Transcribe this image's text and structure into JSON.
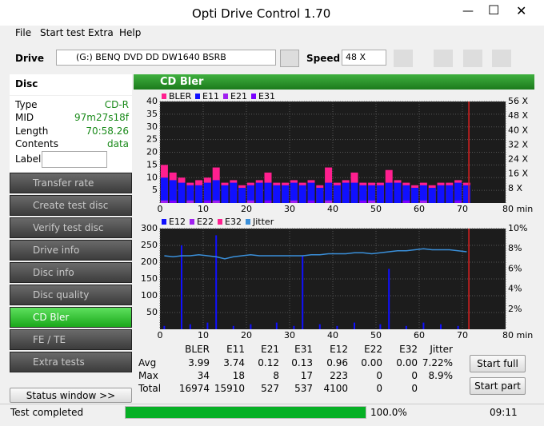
{
  "window": {
    "title": "Opti Drive Control 1.70"
  },
  "menu": [
    "File",
    "Start test",
    "Extra",
    "Help"
  ],
  "toolbar": {
    "drive_label": "Drive",
    "drive": "(G:)  BENQ DVD DD DW1640 BSRB",
    "speed_label": "Speed",
    "speed": "48 X"
  },
  "disc": {
    "title": "Disc",
    "fields": [
      [
        "Type",
        "CD-R"
      ],
      [
        "MID",
        "97m27s18f"
      ],
      [
        "Length",
        "70:58.26"
      ],
      [
        "Contents",
        "data"
      ]
    ],
    "label": "Label"
  },
  "nav": {
    "items": [
      "Transfer rate",
      "Create test disc",
      "Verify test disc",
      "Drive info",
      "Disc info",
      "Disc quality",
      "CD Bler",
      "FE / TE",
      "Extra tests"
    ],
    "selected": 6
  },
  "status_window": "Status window >>",
  "panel_title": "CD Bler",
  "charts": [
    {
      "type": "bar",
      "xlim": [
        0,
        80
      ],
      "xticks": [
        0,
        10,
        20,
        30,
        40,
        50,
        60,
        70,
        {
          "value": 80,
          "label": "80 min"
        }
      ],
      "ylim": [
        0,
        40
      ],
      "yticks": [
        5,
        10,
        15,
        20,
        25,
        30,
        35,
        40
      ],
      "y2lim": [
        0,
        56
      ],
      "y2ticks": [
        {
          "value": 8,
          "label": "8 X"
        },
        {
          "value": 16,
          "label": "16 X"
        },
        {
          "value": 24,
          "label": "24 X"
        },
        {
          "value": 32,
          "label": "32 X"
        },
        {
          "value": 40,
          "label": "40 X"
        },
        {
          "value": 48,
          "label": "48 X"
        },
        {
          "value": 56,
          "label": "56 X"
        }
      ],
      "grid": true,
      "marker": 71.5,
      "x": [
        1,
        3,
        5,
        7,
        9,
        11,
        13,
        15,
        17,
        19,
        21,
        23,
        25,
        27,
        29,
        31,
        33,
        35,
        37,
        39,
        41,
        43,
        45,
        47,
        49,
        51,
        53,
        55,
        57,
        59,
        61,
        63,
        65,
        67,
        69,
        71
      ],
      "series": [
        {
          "name": "BLER",
          "color": "#ff1f8f",
          "values": [
            15,
            12,
            10,
            8,
            9,
            10,
            14,
            8,
            9,
            7,
            8,
            9,
            12,
            8,
            8,
            9,
            8,
            9,
            7,
            14,
            8,
            9,
            12,
            8,
            8,
            8,
            13,
            9,
            8,
            7,
            8,
            7,
            8,
            8,
            9,
            8
          ]
        },
        {
          "name": "E11",
          "color": "#1010ff",
          "values": [
            10,
            9,
            8,
            7,
            7,
            8,
            9,
            7,
            8,
            6,
            7,
            8,
            8,
            7,
            7,
            8,
            7,
            8,
            6,
            8,
            7,
            8,
            8,
            7,
            7,
            7,
            8,
            8,
            7,
            6,
            7,
            6,
            7,
            7,
            8,
            7
          ]
        },
        {
          "name": "E21",
          "color": "#a020f0",
          "values": [
            1,
            0,
            0,
            1,
            0,
            0,
            1,
            0,
            0,
            0,
            1,
            0,
            0,
            0,
            0,
            1,
            0,
            0,
            0,
            1,
            0,
            0,
            0,
            0,
            1,
            0,
            0,
            0,
            0,
            0,
            1,
            0,
            0,
            0,
            0,
            0
          ]
        },
        {
          "name": "E31",
          "color": "#7a00ff",
          "values": [
            0,
            1,
            0,
            0,
            0,
            1,
            0,
            0,
            0,
            0,
            0,
            0,
            1,
            0,
            0,
            0,
            0,
            1,
            0,
            0,
            0,
            0,
            0,
            1,
            0,
            0,
            0,
            0,
            1,
            0,
            0,
            0,
            0,
            0,
            1,
            0
          ]
        }
      ]
    },
    {
      "type": "bar",
      "xlim": [
        0,
        80
      ],
      "xticks": [
        0,
        10,
        20,
        30,
        40,
        50,
        60,
        70,
        {
          "value": 80,
          "label": "80 min"
        }
      ],
      "ylim": [
        0,
        300
      ],
      "yticks": [
        50,
        100,
        150,
        200,
        250,
        300
      ],
      "y2lim": [
        0,
        10
      ],
      "y2ticks": [
        {
          "value": 2,
          "label": "2%"
        },
        {
          "value": 4,
          "label": "4%"
        },
        {
          "value": 6,
          "label": "6%"
        },
        {
          "value": 8,
          "label": "8%"
        },
        {
          "value": 10,
          "label": "10%"
        }
      ],
      "grid": true,
      "marker": 71.5,
      "x": [
        1,
        3,
        5,
        7,
        9,
        11,
        13,
        15,
        17,
        19,
        21,
        23,
        25,
        27,
        29,
        31,
        33,
        35,
        37,
        39,
        41,
        43,
        45,
        47,
        49,
        51,
        53,
        55,
        57,
        59,
        61,
        63,
        65,
        67,
        69,
        71
      ],
      "series": [
        {
          "name": "E12",
          "color": "#1010ff",
          "values": [
            10,
            0,
            250,
            15,
            0,
            20,
            280,
            0,
            10,
            0,
            15,
            0,
            0,
            20,
            0,
            10,
            220,
            0,
            15,
            0,
            10,
            0,
            20,
            0,
            0,
            15,
            180,
            0,
            10,
            0,
            20,
            0,
            15,
            0,
            10,
            0
          ]
        },
        {
          "name": "E22",
          "color": "#a020f0",
          "values": [
            0,
            0,
            0,
            0,
            0,
            0,
            0,
            0,
            0,
            0,
            0,
            0,
            0,
            0,
            0,
            0,
            0,
            0,
            0,
            0,
            0,
            0,
            0,
            0,
            0,
            0,
            0,
            0,
            0,
            0,
            0,
            0,
            0,
            0,
            0,
            0
          ]
        },
        {
          "name": "E32",
          "color": "#ff1f8f",
          "values": [
            0,
            0,
            0,
            0,
            0,
            0,
            0,
            0,
            0,
            0,
            0,
            0,
            0,
            0,
            0,
            0,
            0,
            0,
            0,
            0,
            0,
            0,
            0,
            0,
            0,
            0,
            0,
            0,
            0,
            0,
            0,
            0,
            0,
            0,
            0,
            0
          ]
        },
        {
          "name": "Jitter",
          "color": "#3a8fd9",
          "axis": "y2",
          "values": [
            7.3,
            7.2,
            7.3,
            7.3,
            7.4,
            7.3,
            7.2,
            7.0,
            7.2,
            7.3,
            7.4,
            7.3,
            7.3,
            7.3,
            7.3,
            7.3,
            7.3,
            7.4,
            7.4,
            7.5,
            7.5,
            7.5,
            7.6,
            7.6,
            7.5,
            7.6,
            7.7,
            7.8,
            7.8,
            7.9,
            8.0,
            7.9,
            7.9,
            7.9,
            7.8,
            7.7
          ]
        }
      ]
    }
  ],
  "stats": {
    "columns": [
      "BLER",
      "E11",
      "E21",
      "E31",
      "E12",
      "E22",
      "E32",
      "Jitter"
    ],
    "rows": [
      {
        "label": "Avg",
        "cells": [
          "3.99",
          "3.74",
          "0.12",
          "0.13",
          "0.96",
          "0.00",
          "0.00",
          "7.22%"
        ]
      },
      {
        "label": "Max",
        "cells": [
          "34",
          "18",
          "8",
          "17",
          "223",
          "0",
          "0",
          "8.9%"
        ]
      },
      {
        "label": "Total",
        "cells": [
          "16974",
          "15910",
          "527",
          "537",
          "4100",
          "0",
          "0",
          ""
        ]
      }
    ]
  },
  "buttons": [
    "Start full",
    "Start part"
  ],
  "status": {
    "text": "Test completed",
    "progress": 100,
    "progress_label": "100.0%",
    "time": "09:11"
  }
}
